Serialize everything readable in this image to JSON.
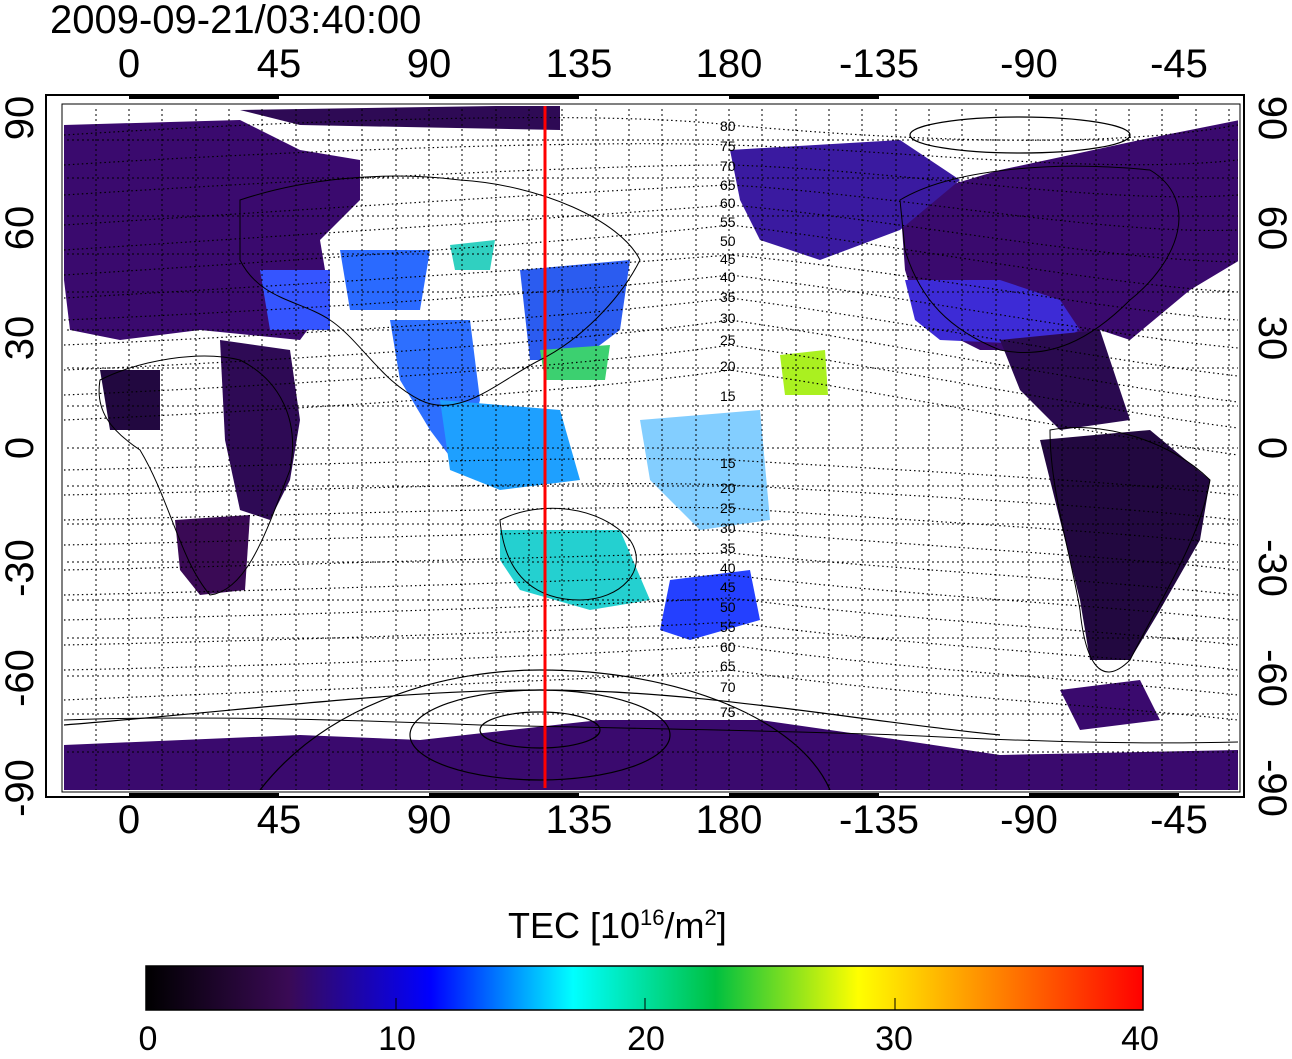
{
  "timestamp": "2009-09-21/03:40:00",
  "top_axis_ticks": [
    "0",
    "45",
    "90",
    "135",
    "180",
    "-135",
    "-90",
    "-45"
  ],
  "bottom_axis_ticks": [
    "0",
    "45",
    "90",
    "135",
    "180",
    "-135",
    "-90",
    "-45"
  ],
  "left_axis_ticks": [
    "90",
    "60",
    "30",
    "0",
    "-30",
    "-60",
    "-90"
  ],
  "right_axis_ticks": [
    "90",
    "60",
    "30",
    "0",
    "-30",
    "-60",
    "-90"
  ],
  "contour_labels_north": [
    "80",
    "75",
    "70",
    "65",
    "60",
    "55",
    "50",
    "45",
    "40",
    "35",
    "30",
    "25",
    "20",
    "15"
  ],
  "contour_labels_south": [
    "15",
    "20",
    "25",
    "30",
    "35",
    "40",
    "45",
    "50",
    "55",
    "60",
    "65",
    "70",
    "75"
  ],
  "colorbar": {
    "title_main": "TEC  [10",
    "title_exp": "16",
    "title_mid": "/m",
    "title_exp2": "2",
    "title_end": "]",
    "ticks": [
      "0",
      "10",
      "20",
      "30",
      "40"
    ],
    "colors": [
      "#000000",
      "#3a0a55",
      "#0000ff",
      "#00ffff",
      "#00c040",
      "#ffff00",
      "#ff8000",
      "#ff0000"
    ]
  },
  "meridian_marker_color": "#ff0000"
}
